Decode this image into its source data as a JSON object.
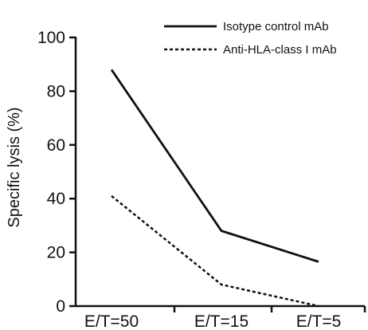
{
  "chart_data": {
    "type": "line",
    "title": "",
    "xlabel": "",
    "ylabel": "Specific lysis (%)",
    "categories": [
      "E/T=50",
      "E/T=15",
      "E/T=5"
    ],
    "ylim": [
      0,
      100
    ],
    "yticks": [
      0,
      20,
      40,
      60,
      80,
      100
    ],
    "grid": false,
    "legend": "top-right",
    "series": [
      {
        "name": "Isotype control mAb",
        "values": [
          88,
          28,
          16.5
        ],
        "color": "#111111",
        "dash": "solid"
      },
      {
        "name": "Anti-HLA-class I mAb",
        "values": [
          41,
          8,
          0
        ],
        "color": "#111111",
        "dash": "dashed"
      }
    ]
  }
}
